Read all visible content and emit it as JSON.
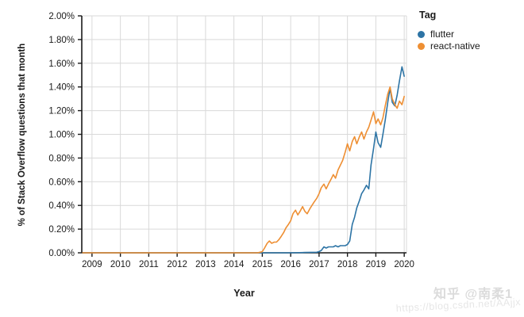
{
  "axes": {
    "x_title": "Year",
    "y_title": "% of Stack Overflow questions that month"
  },
  "watermark": {
    "line1": "知乎 @南柔1",
    "line2": "https://blog.csdn.net/AAjjx"
  },
  "chart_data": {
    "type": "line",
    "title": "",
    "xlabel": "Year",
    "ylabel": "% of Stack Overflow questions that month",
    "legend_title": "Tag",
    "legend_position": "right",
    "grid": true,
    "xlim": [
      2008.64,
      2020.08
    ],
    "ylim": [
      0,
      2.0
    ],
    "x_ticks": [
      {
        "v": 2009,
        "label": "2009"
      },
      {
        "v": 2010,
        "label": "2010"
      },
      {
        "v": 2011,
        "label": "2011"
      },
      {
        "v": 2012,
        "label": "2012"
      },
      {
        "v": 2013,
        "label": "2013"
      },
      {
        "v": 2014,
        "label": "2014"
      },
      {
        "v": 2015,
        "label": "2015"
      },
      {
        "v": 2016,
        "label": "2016"
      },
      {
        "v": 2017,
        "label": "2017"
      },
      {
        "v": 2018,
        "label": "2018"
      },
      {
        "v": 2019,
        "label": "2019"
      },
      {
        "v": 2020,
        "label": "2020"
      }
    ],
    "y_ticks": [
      {
        "v": 0.0,
        "label": "0.00%"
      },
      {
        "v": 0.2,
        "label": "0.20%"
      },
      {
        "v": 0.4,
        "label": "0.40%"
      },
      {
        "v": 0.6,
        "label": "0.60%"
      },
      {
        "v": 0.8,
        "label": "0.80%"
      },
      {
        "v": 1.0,
        "label": "1.00%"
      },
      {
        "v": 1.2,
        "label": "1.20%"
      },
      {
        "v": 1.4,
        "label": "1.40%"
      },
      {
        "v": 1.6,
        "label": "1.60%"
      },
      {
        "v": 1.8,
        "label": "1.80%"
      },
      {
        "v": 2.0,
        "label": "2.00%"
      }
    ],
    "series": [
      {
        "name": "flutter",
        "color": "#2d74a5",
        "points": [
          [
            2008.67,
            0
          ],
          [
            2009.5,
            0
          ],
          [
            2010.5,
            0
          ],
          [
            2011.5,
            0
          ],
          [
            2012.5,
            0
          ],
          [
            2013.5,
            0
          ],
          [
            2014.5,
            0
          ],
          [
            2015.5,
            0
          ],
          [
            2016.0,
            0
          ],
          [
            2016.5,
            0.003
          ],
          [
            2016.92,
            0.005
          ],
          [
            2017.0,
            0.01
          ],
          [
            2017.08,
            0.02
          ],
          [
            2017.17,
            0.05
          ],
          [
            2017.25,
            0.04
          ],
          [
            2017.33,
            0.05
          ],
          [
            2017.42,
            0.05
          ],
          [
            2017.5,
            0.05
          ],
          [
            2017.58,
            0.06
          ],
          [
            2017.67,
            0.05
          ],
          [
            2017.75,
            0.06
          ],
          [
            2017.83,
            0.06
          ],
          [
            2017.92,
            0.06
          ],
          [
            2018.0,
            0.07
          ],
          [
            2018.08,
            0.1
          ],
          [
            2018.17,
            0.24
          ],
          [
            2018.25,
            0.3
          ],
          [
            2018.33,
            0.38
          ],
          [
            2018.42,
            0.44
          ],
          [
            2018.5,
            0.5
          ],
          [
            2018.58,
            0.53
          ],
          [
            2018.67,
            0.57
          ],
          [
            2018.75,
            0.54
          ],
          [
            2018.83,
            0.74
          ],
          [
            2018.92,
            0.88
          ],
          [
            2019.0,
            1.02
          ],
          [
            2019.08,
            0.93
          ],
          [
            2019.17,
            0.89
          ],
          [
            2019.25,
            1.0
          ],
          [
            2019.33,
            1.12
          ],
          [
            2019.42,
            1.27
          ],
          [
            2019.5,
            1.39
          ],
          [
            2019.58,
            1.27
          ],
          [
            2019.67,
            1.24
          ],
          [
            2019.75,
            1.33
          ],
          [
            2019.83,
            1.45
          ],
          [
            2019.92,
            1.57
          ],
          [
            2020.0,
            1.49
          ]
        ]
      },
      {
        "name": "react-native",
        "color": "#ee8f33",
        "points": [
          [
            2008.67,
            0
          ],
          [
            2009.5,
            0
          ],
          [
            2010.5,
            0
          ],
          [
            2011.5,
            0
          ],
          [
            2012.5,
            0
          ],
          [
            2013.5,
            0
          ],
          [
            2014.0,
            0
          ],
          [
            2014.5,
            0
          ],
          [
            2014.83,
            0
          ],
          [
            2014.92,
            0.005
          ],
          [
            2015.0,
            0.01
          ],
          [
            2015.08,
            0.04
          ],
          [
            2015.17,
            0.08
          ],
          [
            2015.25,
            0.1
          ],
          [
            2015.33,
            0.08
          ],
          [
            2015.42,
            0.09
          ],
          [
            2015.5,
            0.09
          ],
          [
            2015.58,
            0.11
          ],
          [
            2015.67,
            0.14
          ],
          [
            2015.75,
            0.17
          ],
          [
            2015.83,
            0.21
          ],
          [
            2015.92,
            0.24
          ],
          [
            2016.0,
            0.27
          ],
          [
            2016.08,
            0.33
          ],
          [
            2016.17,
            0.36
          ],
          [
            2016.25,
            0.32
          ],
          [
            2016.33,
            0.35
          ],
          [
            2016.42,
            0.39
          ],
          [
            2016.5,
            0.35
          ],
          [
            2016.58,
            0.33
          ],
          [
            2016.67,
            0.37
          ],
          [
            2016.75,
            0.4
          ],
          [
            2016.83,
            0.43
          ],
          [
            2016.92,
            0.46
          ],
          [
            2017.0,
            0.5
          ],
          [
            2017.08,
            0.55
          ],
          [
            2017.17,
            0.58
          ],
          [
            2017.25,
            0.54
          ],
          [
            2017.33,
            0.58
          ],
          [
            2017.42,
            0.62
          ],
          [
            2017.5,
            0.66
          ],
          [
            2017.58,
            0.63
          ],
          [
            2017.67,
            0.7
          ],
          [
            2017.75,
            0.74
          ],
          [
            2017.83,
            0.78
          ],
          [
            2017.92,
            0.85
          ],
          [
            2018.0,
            0.92
          ],
          [
            2018.08,
            0.86
          ],
          [
            2018.17,
            0.94
          ],
          [
            2018.25,
            0.98
          ],
          [
            2018.33,
            0.92
          ],
          [
            2018.42,
            0.98
          ],
          [
            2018.5,
            1.02
          ],
          [
            2018.58,
            0.96
          ],
          [
            2018.67,
            1.02
          ],
          [
            2018.75,
            1.06
          ],
          [
            2018.83,
            1.12
          ],
          [
            2018.92,
            1.19
          ],
          [
            2019.0,
            1.09
          ],
          [
            2019.08,
            1.13
          ],
          [
            2019.17,
            1.08
          ],
          [
            2019.25,
            1.14
          ],
          [
            2019.33,
            1.24
          ],
          [
            2019.42,
            1.34
          ],
          [
            2019.5,
            1.4
          ],
          [
            2019.58,
            1.3
          ],
          [
            2019.67,
            1.25
          ],
          [
            2019.75,
            1.22
          ],
          [
            2019.83,
            1.28
          ],
          [
            2019.92,
            1.25
          ],
          [
            2020.0,
            1.32
          ]
        ]
      }
    ]
  }
}
